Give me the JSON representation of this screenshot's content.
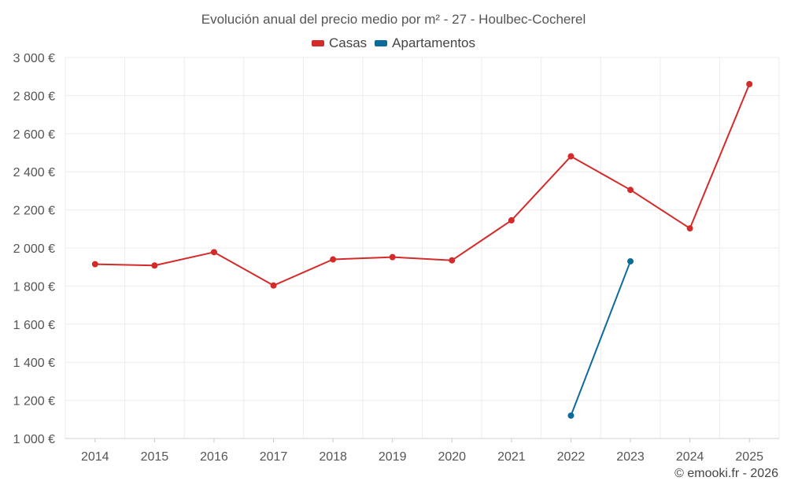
{
  "chart_data": {
    "type": "line",
    "title": "Evolución anual del precio medio por m² - 27 - Houlbec-Cocherel",
    "xlabel": "",
    "ylabel": "",
    "categories": [
      "2014",
      "2015",
      "2016",
      "2017",
      "2018",
      "2019",
      "2020",
      "2021",
      "2022",
      "2023",
      "2024",
      "2025"
    ],
    "ylim": [
      1000,
      3000
    ],
    "yticks": [
      1000,
      1200,
      1400,
      1600,
      1800,
      2000,
      2200,
      2400,
      2600,
      2800,
      3000
    ],
    "ytick_labels": [
      "1 000 €",
      "1 200 €",
      "1 400 €",
      "1 600 €",
      "1 800 €",
      "2 000 €",
      "2 200 €",
      "2 400 €",
      "2 600 €",
      "2 800 €",
      "3 000 €"
    ],
    "grid": true,
    "legend_position": "top-center",
    "series": [
      {
        "name": "Casas",
        "color": "#d42a2a",
        "values": [
          1915,
          1908,
          1978,
          1803,
          1940,
          1952,
          1935,
          2145,
          2481,
          2305,
          2103,
          2860
        ]
      },
      {
        "name": "Apartamentos",
        "color": "#0e6a9a",
        "values": [
          null,
          null,
          null,
          null,
          null,
          null,
          null,
          null,
          1120,
          1930,
          null,
          null
        ]
      }
    ]
  },
  "credit": "© emooki.fr - 2026"
}
